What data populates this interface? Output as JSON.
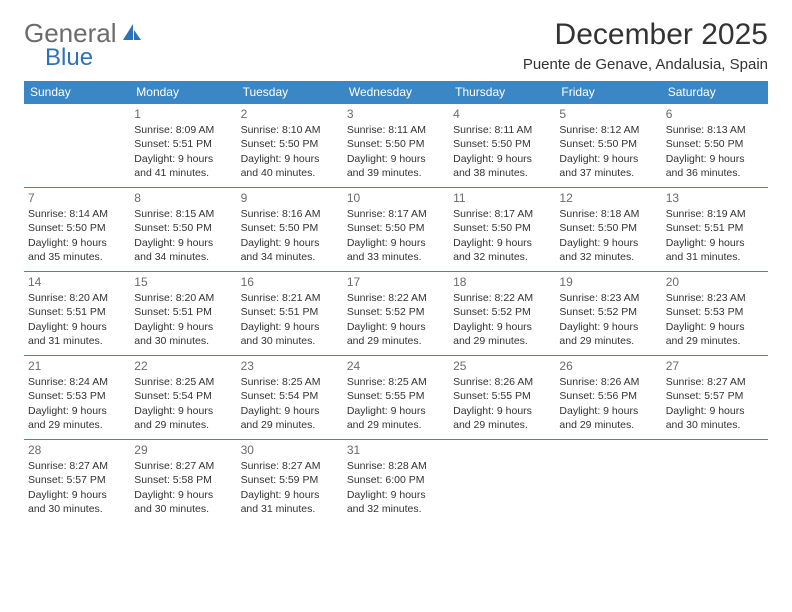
{
  "brand": {
    "part1": "General",
    "part2": "Blue"
  },
  "title": "December 2025",
  "location": "Puente de Genave, Andalusia, Spain",
  "colors": {
    "header_bg": "#3b86c4",
    "header_text": "#ffffff",
    "rule": "#3b86c4",
    "daynum": "#6b6b6b",
    "brand_gray": "#6b6b6b",
    "brand_blue": "#2d72b8"
  },
  "weekdays": [
    "Sunday",
    "Monday",
    "Tuesday",
    "Wednesday",
    "Thursday",
    "Friday",
    "Saturday"
  ],
  "weeks": [
    [
      null,
      {
        "d": "1",
        "sr": "Sunrise: 8:09 AM",
        "ss": "Sunset: 5:51 PM",
        "dl1": "Daylight: 9 hours",
        "dl2": "and 41 minutes."
      },
      {
        "d": "2",
        "sr": "Sunrise: 8:10 AM",
        "ss": "Sunset: 5:50 PM",
        "dl1": "Daylight: 9 hours",
        "dl2": "and 40 minutes."
      },
      {
        "d": "3",
        "sr": "Sunrise: 8:11 AM",
        "ss": "Sunset: 5:50 PM",
        "dl1": "Daylight: 9 hours",
        "dl2": "and 39 minutes."
      },
      {
        "d": "4",
        "sr": "Sunrise: 8:11 AM",
        "ss": "Sunset: 5:50 PM",
        "dl1": "Daylight: 9 hours",
        "dl2": "and 38 minutes."
      },
      {
        "d": "5",
        "sr": "Sunrise: 8:12 AM",
        "ss": "Sunset: 5:50 PM",
        "dl1": "Daylight: 9 hours",
        "dl2": "and 37 minutes."
      },
      {
        "d": "6",
        "sr": "Sunrise: 8:13 AM",
        "ss": "Sunset: 5:50 PM",
        "dl1": "Daylight: 9 hours",
        "dl2": "and 36 minutes."
      }
    ],
    [
      {
        "d": "7",
        "sr": "Sunrise: 8:14 AM",
        "ss": "Sunset: 5:50 PM",
        "dl1": "Daylight: 9 hours",
        "dl2": "and 35 minutes."
      },
      {
        "d": "8",
        "sr": "Sunrise: 8:15 AM",
        "ss": "Sunset: 5:50 PM",
        "dl1": "Daylight: 9 hours",
        "dl2": "and 34 minutes."
      },
      {
        "d": "9",
        "sr": "Sunrise: 8:16 AM",
        "ss": "Sunset: 5:50 PM",
        "dl1": "Daylight: 9 hours",
        "dl2": "and 34 minutes."
      },
      {
        "d": "10",
        "sr": "Sunrise: 8:17 AM",
        "ss": "Sunset: 5:50 PM",
        "dl1": "Daylight: 9 hours",
        "dl2": "and 33 minutes."
      },
      {
        "d": "11",
        "sr": "Sunrise: 8:17 AM",
        "ss": "Sunset: 5:50 PM",
        "dl1": "Daylight: 9 hours",
        "dl2": "and 32 minutes."
      },
      {
        "d": "12",
        "sr": "Sunrise: 8:18 AM",
        "ss": "Sunset: 5:50 PM",
        "dl1": "Daylight: 9 hours",
        "dl2": "and 32 minutes."
      },
      {
        "d": "13",
        "sr": "Sunrise: 8:19 AM",
        "ss": "Sunset: 5:51 PM",
        "dl1": "Daylight: 9 hours",
        "dl2": "and 31 minutes."
      }
    ],
    [
      {
        "d": "14",
        "sr": "Sunrise: 8:20 AM",
        "ss": "Sunset: 5:51 PM",
        "dl1": "Daylight: 9 hours",
        "dl2": "and 31 minutes."
      },
      {
        "d": "15",
        "sr": "Sunrise: 8:20 AM",
        "ss": "Sunset: 5:51 PM",
        "dl1": "Daylight: 9 hours",
        "dl2": "and 30 minutes."
      },
      {
        "d": "16",
        "sr": "Sunrise: 8:21 AM",
        "ss": "Sunset: 5:51 PM",
        "dl1": "Daylight: 9 hours",
        "dl2": "and 30 minutes."
      },
      {
        "d": "17",
        "sr": "Sunrise: 8:22 AM",
        "ss": "Sunset: 5:52 PM",
        "dl1": "Daylight: 9 hours",
        "dl2": "and 29 minutes."
      },
      {
        "d": "18",
        "sr": "Sunrise: 8:22 AM",
        "ss": "Sunset: 5:52 PM",
        "dl1": "Daylight: 9 hours",
        "dl2": "and 29 minutes."
      },
      {
        "d": "19",
        "sr": "Sunrise: 8:23 AM",
        "ss": "Sunset: 5:52 PM",
        "dl1": "Daylight: 9 hours",
        "dl2": "and 29 minutes."
      },
      {
        "d": "20",
        "sr": "Sunrise: 8:23 AM",
        "ss": "Sunset: 5:53 PM",
        "dl1": "Daylight: 9 hours",
        "dl2": "and 29 minutes."
      }
    ],
    [
      {
        "d": "21",
        "sr": "Sunrise: 8:24 AM",
        "ss": "Sunset: 5:53 PM",
        "dl1": "Daylight: 9 hours",
        "dl2": "and 29 minutes."
      },
      {
        "d": "22",
        "sr": "Sunrise: 8:25 AM",
        "ss": "Sunset: 5:54 PM",
        "dl1": "Daylight: 9 hours",
        "dl2": "and 29 minutes."
      },
      {
        "d": "23",
        "sr": "Sunrise: 8:25 AM",
        "ss": "Sunset: 5:54 PM",
        "dl1": "Daylight: 9 hours",
        "dl2": "and 29 minutes."
      },
      {
        "d": "24",
        "sr": "Sunrise: 8:25 AM",
        "ss": "Sunset: 5:55 PM",
        "dl1": "Daylight: 9 hours",
        "dl2": "and 29 minutes."
      },
      {
        "d": "25",
        "sr": "Sunrise: 8:26 AM",
        "ss": "Sunset: 5:55 PM",
        "dl1": "Daylight: 9 hours",
        "dl2": "and 29 minutes."
      },
      {
        "d": "26",
        "sr": "Sunrise: 8:26 AM",
        "ss": "Sunset: 5:56 PM",
        "dl1": "Daylight: 9 hours",
        "dl2": "and 29 minutes."
      },
      {
        "d": "27",
        "sr": "Sunrise: 8:27 AM",
        "ss": "Sunset: 5:57 PM",
        "dl1": "Daylight: 9 hours",
        "dl2": "and 30 minutes."
      }
    ],
    [
      {
        "d": "28",
        "sr": "Sunrise: 8:27 AM",
        "ss": "Sunset: 5:57 PM",
        "dl1": "Daylight: 9 hours",
        "dl2": "and 30 minutes."
      },
      {
        "d": "29",
        "sr": "Sunrise: 8:27 AM",
        "ss": "Sunset: 5:58 PM",
        "dl1": "Daylight: 9 hours",
        "dl2": "and 30 minutes."
      },
      {
        "d": "30",
        "sr": "Sunrise: 8:27 AM",
        "ss": "Sunset: 5:59 PM",
        "dl1": "Daylight: 9 hours",
        "dl2": "and 31 minutes."
      },
      {
        "d": "31",
        "sr": "Sunrise: 8:28 AM",
        "ss": "Sunset: 6:00 PM",
        "dl1": "Daylight: 9 hours",
        "dl2": "and 32 minutes."
      },
      null,
      null,
      null
    ]
  ]
}
